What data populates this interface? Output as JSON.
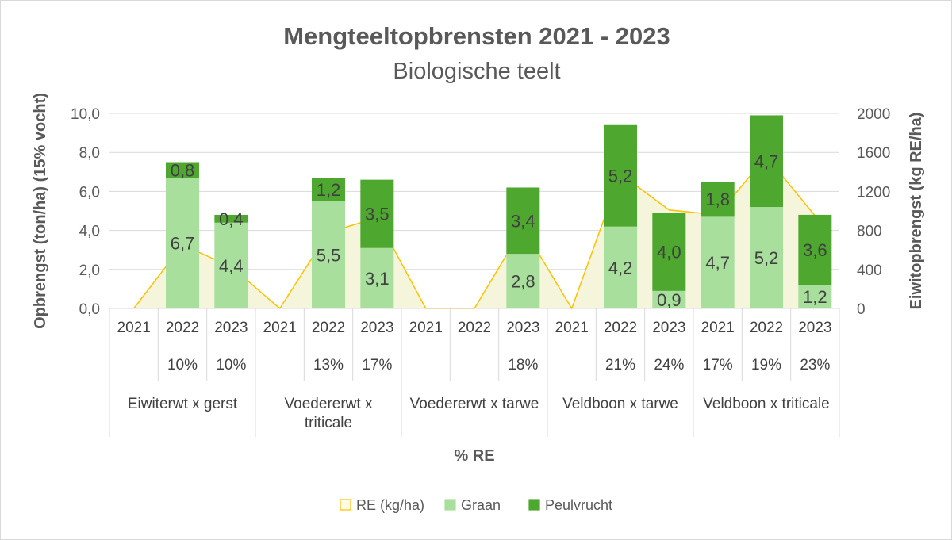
{
  "chart_data": {
    "type": "bar",
    "title": "Mengteeltopbrensten 2021 - 2023",
    "subtitle": "Biologische teelt",
    "xlabel": "% RE",
    "ylabel": "Opbrengst (ton/ha) (15% vocht)",
    "y2label": "Eiwitopbrengst (kg RE/ha)",
    "ylim": [
      0,
      10
    ],
    "y2lim": [
      0,
      2000
    ],
    "yticks": [
      "0,0",
      "2,0",
      "4,0",
      "6,0",
      "8,0",
      "10,0"
    ],
    "y2ticks": [
      "0",
      "400",
      "800",
      "1200",
      "1600",
      "2000"
    ],
    "groups": [
      {
        "name": "Eiwiterwt x gerst",
        "years": [
          "2021",
          "2022",
          "2023"
        ]
      },
      {
        "name": "Voedererwt x triticale",
        "years": [
          "2021",
          "2022",
          "2023"
        ]
      },
      {
        "name": "Voedererwt x tarwe",
        "years": [
          "2021",
          "2022",
          "2023"
        ]
      },
      {
        "name": "Veldboon x tarwe",
        "years": [
          "2021",
          "2022",
          "2023"
        ]
      },
      {
        "name": "Veldboon x triticale",
        "years": [
          "2021",
          "2022",
          "2023"
        ]
      }
    ],
    "pct_re": [
      "",
      "10%",
      "10%",
      "",
      "13%",
      "17%",
      "",
      "",
      "18%",
      "",
      "21%",
      "24%",
      "17%",
      "19%",
      "23%"
    ],
    "series": [
      {
        "name": "Graan",
        "type": "bar",
        "color": "#a9df9d",
        "values": [
          0,
          6.7,
          4.4,
          0,
          5.5,
          3.1,
          0,
          0,
          2.8,
          0,
          4.2,
          0.9,
          4.7,
          5.2,
          1.2
        ],
        "labels": [
          "",
          "6,7",
          "4,4",
          "",
          "5,5",
          "3,1",
          "",
          "",
          "2,8",
          "",
          "4,2",
          "0,9",
          "4,7",
          "5,2",
          "1,2"
        ]
      },
      {
        "name": "Peulvrucht",
        "type": "bar",
        "color": "#4ea72e",
        "values": [
          0,
          0.8,
          0.4,
          0,
          1.2,
          3.5,
          0,
          0,
          3.4,
          0,
          5.2,
          4.0,
          1.8,
          4.7,
          3.6
        ],
        "labels": [
          "",
          "0,8",
          "0,4",
          "",
          "1,2",
          "3,5",
          "",
          "",
          "3,4",
          "",
          "5,2",
          "4,0",
          "1,8",
          "4,7",
          "3,6"
        ]
      },
      {
        "name": "RE (kg/ha)",
        "type": "area",
        "axis": "right",
        "color": "#ffc000",
        "fill": "#f5f5dc",
        "values": [
          0,
          650,
          430,
          0,
          780,
          930,
          0,
          0,
          830,
          0,
          1380,
          1010,
          960,
          1560,
          950
        ]
      }
    ],
    "legend": {
      "position": "bottom",
      "entries": [
        "RE (kg/ha)",
        "Graan",
        "Peulvrucht"
      ]
    },
    "grid": true
  }
}
